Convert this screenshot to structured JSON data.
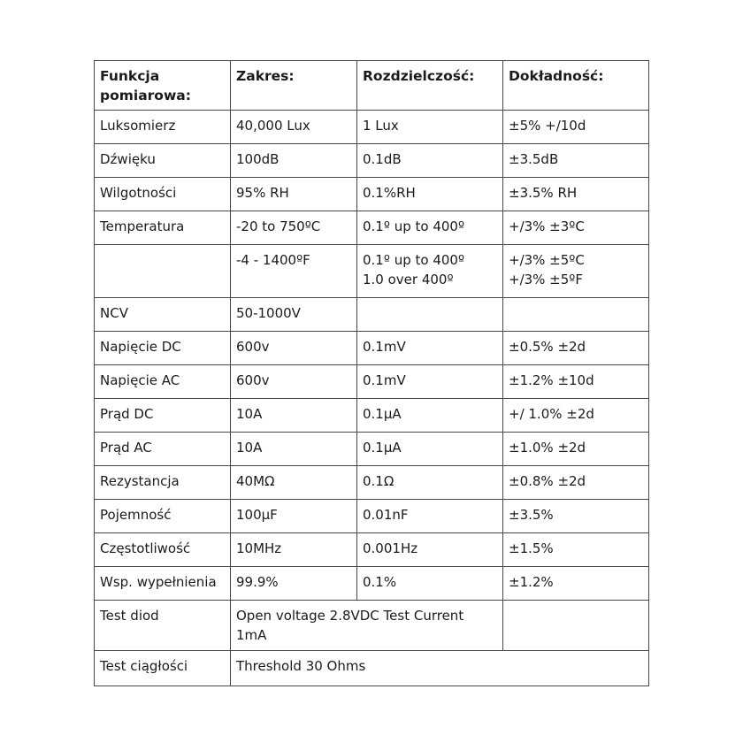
{
  "colors": {
    "background": "#ffffff",
    "table_border": "#474747",
    "text": "#1b1b1b"
  },
  "table": {
    "header": [
      {
        "lines": [
          "Funkcja",
          "pomiarowa:"
        ]
      },
      {
        "lines": [
          "Zakres:"
        ]
      },
      {
        "lines": [
          "Rozdzielczość:"
        ]
      },
      {
        "lines": [
          "Dokładność:"
        ]
      }
    ],
    "rows": [
      {
        "cells": [
          {
            "lines": [
              "Luksomierz"
            ]
          },
          {
            "lines": [
              "40,000 Lux"
            ]
          },
          {
            "lines": [
              "1 Lux"
            ]
          },
          {
            "lines": [
              "±5% +/10d"
            ]
          }
        ]
      },
      {
        "cells": [
          {
            "lines": [
              "Dźwięku"
            ]
          },
          {
            "lines": [
              "100dB"
            ]
          },
          {
            "lines": [
              "0.1dB"
            ]
          },
          {
            "lines": [
              "±3.5dB"
            ]
          }
        ]
      },
      {
        "cells": [
          {
            "lines": [
              "Wilgotności"
            ]
          },
          {
            "lines": [
              "95% RH"
            ]
          },
          {
            "lines": [
              "0.1%RH"
            ]
          },
          {
            "lines": [
              "±3.5% RH"
            ]
          }
        ]
      },
      {
        "cells": [
          {
            "lines": [
              "Temperatura"
            ]
          },
          {
            "lines": [
              "-20 to 750ºC"
            ]
          },
          {
            "lines": [
              "0.1º up to 400º"
            ]
          },
          {
            "lines": [
              "+/3% ±3ºC"
            ]
          }
        ]
      },
      {
        "cells": [
          {
            "lines": []
          },
          {
            "lines": [
              "-4 - 1400ºF"
            ]
          },
          {
            "lines": [
              "0.1º up to 400º",
              "1.0 over 400º"
            ]
          },
          {
            "lines": [
              "+/3% ±5ºC",
              "+/3% ±5ºF"
            ]
          }
        ]
      },
      {
        "cells": [
          {
            "lines": [
              "NCV"
            ]
          },
          {
            "lines": [
              "50-1000V"
            ]
          },
          {
            "lines": []
          },
          {
            "lines": []
          }
        ]
      },
      {
        "cells": [
          {
            "lines": [
              "Napięcie DC"
            ]
          },
          {
            "lines": [
              "600v"
            ]
          },
          {
            "lines": [
              "0.1mV"
            ]
          },
          {
            "lines": [
              "±0.5% ±2d"
            ]
          }
        ]
      },
      {
        "cells": [
          {
            "lines": [
              "Napięcie AC"
            ]
          },
          {
            "lines": [
              "600v"
            ]
          },
          {
            "lines": [
              "0.1mV"
            ]
          },
          {
            "lines": [
              "±1.2% ±10d"
            ]
          }
        ]
      },
      {
        "cells": [
          {
            "lines": [
              "Prąd DC"
            ]
          },
          {
            "lines": [
              "10A"
            ]
          },
          {
            "lines": [
              "0.1µA"
            ]
          },
          {
            "lines": [
              "+/ 1.0% ±2d"
            ]
          }
        ]
      },
      {
        "cells": [
          {
            "lines": [
              "Prąd AC"
            ]
          },
          {
            "lines": [
              "10A"
            ]
          },
          {
            "lines": [
              "0.1µA"
            ]
          },
          {
            "lines": [
              "±1.0% ±2d"
            ]
          }
        ]
      },
      {
        "cells": [
          {
            "lines": [
              "Rezystancja"
            ]
          },
          {
            "lines": [
              "40MΩ"
            ]
          },
          {
            "lines": [
              "0.1Ω"
            ]
          },
          {
            "lines": [
              "±0.8% ±2d"
            ]
          }
        ]
      },
      {
        "cells": [
          {
            "lines": [
              "Pojemność"
            ]
          },
          {
            "lines": [
              "100µF"
            ]
          },
          {
            "lines": [
              "0.01nF"
            ]
          },
          {
            "lines": [
              "±3.5%"
            ]
          }
        ]
      },
      {
        "cells": [
          {
            "lines": [
              "Częstotliwość"
            ]
          },
          {
            "lines": [
              "10MHz"
            ]
          },
          {
            "lines": [
              "0.001Hz"
            ]
          },
          {
            "lines": [
              "±1.5%"
            ]
          }
        ]
      },
      {
        "cells": [
          {
            "lines": [
              "Wsp. wypełnienia"
            ]
          },
          {
            "lines": [
              "99.9%"
            ]
          },
          {
            "lines": [
              "0.1%"
            ]
          },
          {
            "lines": [
              "±1.2%"
            ]
          }
        ]
      },
      {
        "cells": [
          {
            "lines": [
              "Test diod"
            ]
          },
          {
            "colspan": 2,
            "lines": [
              "Open voltage 2.8VDC Test Current",
              "1mA"
            ]
          },
          {
            "lines": []
          }
        ]
      },
      {
        "cells": [
          {
            "lines": [
              "Test ciągłości"
            ]
          },
          {
            "colspan": 3,
            "lines": [
              "Threshold 30 Ohms"
            ]
          }
        ]
      }
    ]
  }
}
